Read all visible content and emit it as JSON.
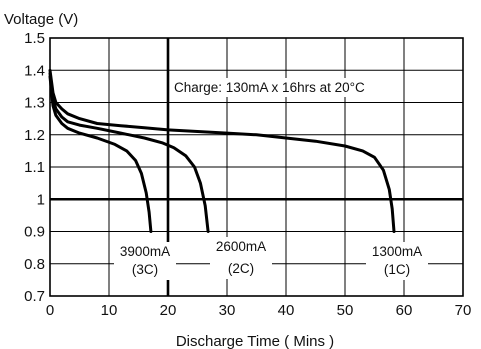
{
  "chart_data": {
    "type": "line",
    "title": "",
    "xlabel": "Discharge Time ( Mins )",
    "ylabel": "Voltage (V)",
    "xlim": [
      0,
      70
    ],
    "ylim": [
      0.7,
      1.5
    ],
    "xticks": [
      0,
      10,
      20,
      30,
      40,
      50,
      60,
      70
    ],
    "yticks": [
      0.7,
      0.8,
      0.9,
      1,
      1.1,
      1.2,
      1.3,
      1.4,
      1.5
    ],
    "grid": true,
    "legend": "none",
    "annotation": "Charge: 130mA x 16hrs at 20°C",
    "series": [
      {
        "name": "1300mA (1C)",
        "label_line1": "1300mA",
        "label_line2": "(1C)",
        "color": "#000000",
        "points": [
          [
            0,
            1.4
          ],
          [
            0.5,
            1.33
          ],
          [
            1,
            1.3
          ],
          [
            2,
            1.28
          ],
          [
            3,
            1.265
          ],
          [
            5,
            1.25
          ],
          [
            8,
            1.235
          ],
          [
            12,
            1.228
          ],
          [
            16,
            1.222
          ],
          [
            20,
            1.215
          ],
          [
            25,
            1.21
          ],
          [
            30,
            1.205
          ],
          [
            35,
            1.2
          ],
          [
            40,
            1.19
          ],
          [
            45,
            1.18
          ],
          [
            50,
            1.165
          ],
          [
            53,
            1.15
          ],
          [
            55,
            1.13
          ],
          [
            56.5,
            1.09
          ],
          [
            57.5,
            1.03
          ],
          [
            58,
            0.97
          ],
          [
            58.3,
            0.9
          ]
        ]
      },
      {
        "name": "2600mA (2C)",
        "label_line1": "2600mA",
        "label_line2": "(2C)",
        "color": "#000000",
        "points": [
          [
            0,
            1.39
          ],
          [
            0.5,
            1.31
          ],
          [
            1,
            1.28
          ],
          [
            2,
            1.255
          ],
          [
            3,
            1.24
          ],
          [
            5,
            1.23
          ],
          [
            8,
            1.22
          ],
          [
            12,
            1.205
          ],
          [
            16,
            1.19
          ],
          [
            19,
            1.175
          ],
          [
            21,
            1.16
          ],
          [
            23,
            1.135
          ],
          [
            24.5,
            1.1
          ],
          [
            25.5,
            1.05
          ],
          [
            26.3,
            0.98
          ],
          [
            26.8,
            0.9
          ]
        ]
      },
      {
        "name": "3900mA (3C)",
        "label_line1": "3900mA",
        "label_line2": "(3C)",
        "color": "#000000",
        "points": [
          [
            0,
            1.38
          ],
          [
            0.5,
            1.29
          ],
          [
            1,
            1.26
          ],
          [
            2,
            1.235
          ],
          [
            3,
            1.22
          ],
          [
            5,
            1.205
          ],
          [
            8,
            1.19
          ],
          [
            11,
            1.17
          ],
          [
            13,
            1.15
          ],
          [
            14.5,
            1.12
          ],
          [
            15.5,
            1.08
          ],
          [
            16.3,
            1.02
          ],
          [
            16.8,
            0.96
          ],
          [
            17.1,
            0.9
          ]
        ]
      }
    ]
  }
}
